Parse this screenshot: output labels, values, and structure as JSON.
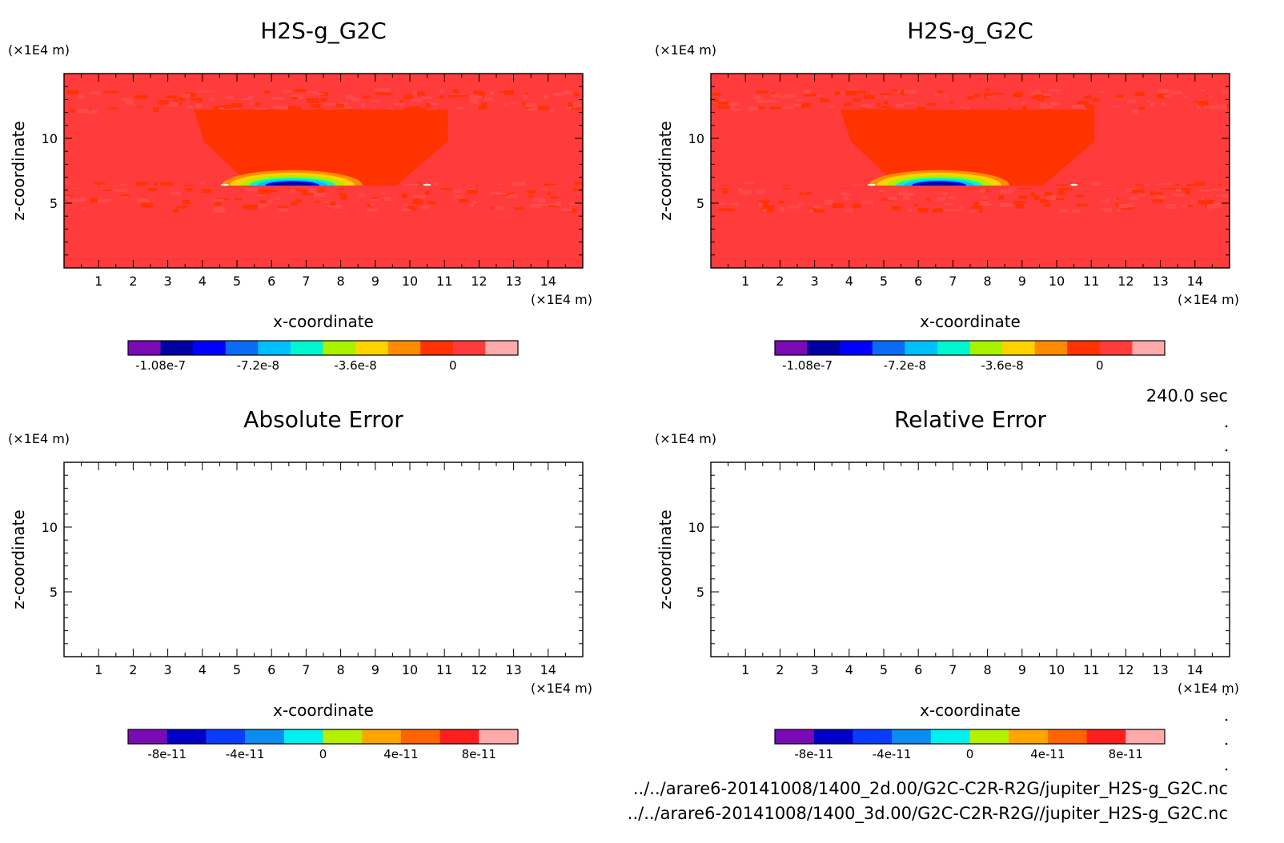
{
  "chart_data": [
    {
      "type": "heatmap",
      "title": "H2S-g_G2C",
      "xlabel": "x-coordinate",
      "ylabel": "z-coordinate",
      "x_unit": "(×1E4 m)",
      "y_unit": "(×1E4 m)",
      "xlim": [
        0,
        15
      ],
      "ylim": [
        0,
        15
      ],
      "x_ticks": [
        "1",
        "2",
        "3",
        "4",
        "5",
        "6",
        "7",
        "8",
        "9",
        "10",
        "11",
        "12",
        "13",
        "14"
      ],
      "y_ticks": [
        "5",
        "10"
      ],
      "field": "filled",
      "colorbar": {
        "colors": [
          "#7a0bb4",
          "#0000a0",
          "#0000ff",
          "#0a6cf2",
          "#00bfff",
          "#00f5d0",
          "#a8f200",
          "#ffd200",
          "#ff8c00",
          "#ff3300",
          "#ff3b3b",
          "#ffaaaa"
        ],
        "labels": [
          "-1.08e-7",
          "-7.2e-8",
          "-3.6e-8",
          "0"
        ]
      }
    },
    {
      "type": "heatmap",
      "title": "H2S-g_G2C",
      "xlabel": "x-coordinate",
      "ylabel": "z-coordinate",
      "x_unit": "(×1E4 m)",
      "y_unit": "(×1E4 m)",
      "xlim": [
        0,
        15
      ],
      "ylim": [
        0,
        15
      ],
      "x_ticks": [
        "1",
        "2",
        "3",
        "4",
        "5",
        "6",
        "7",
        "8",
        "9",
        "10",
        "11",
        "12",
        "13",
        "14"
      ],
      "y_ticks": [
        "5",
        "10"
      ],
      "field": "filled",
      "colorbar": {
        "colors": [
          "#7a0bb4",
          "#0000a0",
          "#0000ff",
          "#0a6cf2",
          "#00bfff",
          "#00f5d0",
          "#a8f200",
          "#ffd200",
          "#ff8c00",
          "#ff3300",
          "#ff3b3b",
          "#ffaaaa"
        ],
        "labels": [
          "-1.08e-7",
          "-7.2e-8",
          "-3.6e-8",
          "0"
        ]
      }
    },
    {
      "type": "heatmap",
      "title": "Absolute Error",
      "xlabel": "x-coordinate",
      "ylabel": "z-coordinate",
      "x_unit": "(×1E4 m)",
      "y_unit": "(×1E4 m)",
      "xlim": [
        0,
        15
      ],
      "ylim": [
        0,
        15
      ],
      "x_ticks": [
        "1",
        "2",
        "3",
        "4",
        "5",
        "6",
        "7",
        "8",
        "9",
        "10",
        "11",
        "12",
        "13",
        "14"
      ],
      "y_ticks": [
        "5",
        "10"
      ],
      "field": "empty",
      "colorbar": {
        "colors": [
          "#7a0bb4",
          "#0000c8",
          "#0a3cff",
          "#0a8cf0",
          "#00f0f0",
          "#b4f000",
          "#ffa500",
          "#ff6400",
          "#ff1e1e",
          "#ffaaaa"
        ],
        "labels": [
          "-8e-11",
          "-4e-11",
          "0",
          "4e-11",
          "8e-11"
        ]
      }
    },
    {
      "type": "heatmap",
      "title": "Relative Error",
      "xlabel": "x-coordinate",
      "ylabel": "z-coordinate",
      "x_unit": "(×1E4 m)",
      "y_unit": "(×1E4 m)",
      "xlim": [
        0,
        15
      ],
      "ylim": [
        0,
        15
      ],
      "x_ticks": [
        "1",
        "2",
        "3",
        "4",
        "5",
        "6",
        "7",
        "8",
        "9",
        "10",
        "11",
        "12",
        "13",
        "14"
      ],
      "y_ticks": [
        "5",
        "10"
      ],
      "field": "empty",
      "colorbar": {
        "colors": [
          "#7a0bb4",
          "#0000c8",
          "#0a3cff",
          "#0a8cf0",
          "#00f0f0",
          "#b4f000",
          "#ffa500",
          "#ff6400",
          "#ff1e1e",
          "#ffaaaa"
        ],
        "labels": [
          "-8e-11",
          "-4e-11",
          "0",
          "4e-11",
          "8e-11"
        ]
      }
    }
  ],
  "time_label": "240.0 sec",
  "footer": {
    "path1": "../../arare6-20141008/1400_2d.00/G2C-C2R-R2G/jupiter_H2S-g_G2C.nc",
    "path2": "../../arare6-20141008/1400_3d.00/G2C-C2R-R2G//jupiter_H2S-g_G2C.nc"
  }
}
